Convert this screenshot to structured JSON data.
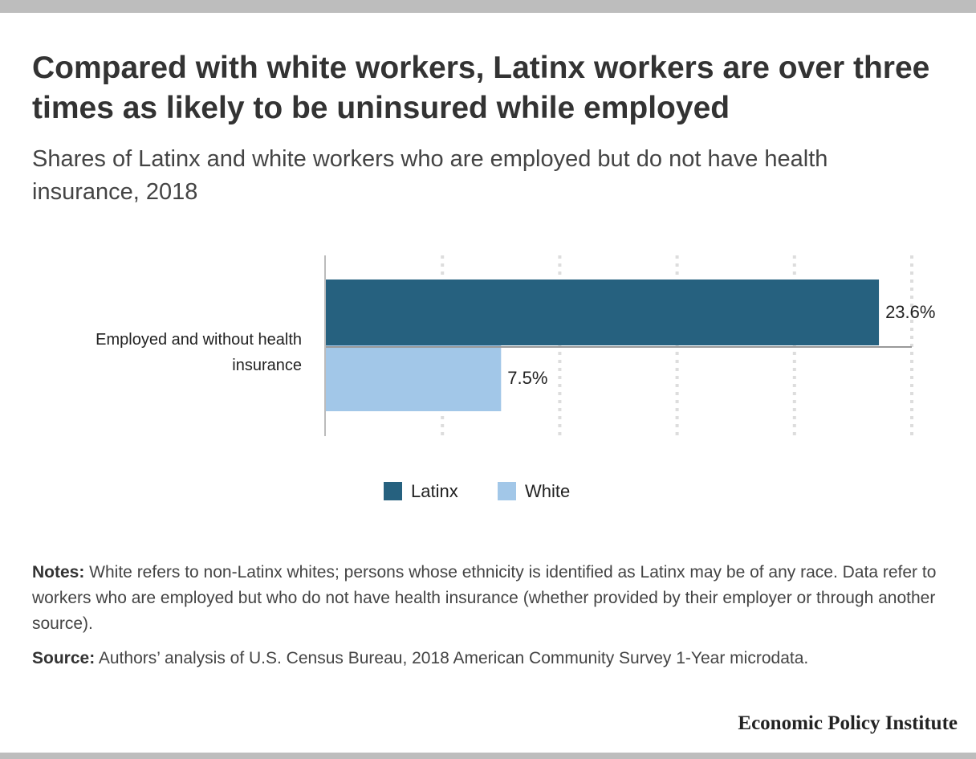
{
  "title": "Compared with white workers, Latinx workers are over three times as likely to be uninsured while employed",
  "subtitle": "Shares of Latinx and white workers who are employed but do not have health insurance, 2018",
  "notes": {
    "label": "Notes:",
    "text": " White refers to non-Latinx whites; persons whose ethnicity is identified as Latinx may be of any race. Data refer to workers who are employed but who do not have health insurance (whether provided by their employer or through another source)."
  },
  "source": {
    "label": "Source:",
    "text": " Authors’ analysis of U.S. Census Bureau, 2018 American Community Survey 1-Year microdata."
  },
  "branding": {
    "name": "Economic Policy Institute"
  },
  "chart_data": {
    "type": "bar",
    "orientation": "horizontal",
    "categories": [
      "Employed and without health insurance"
    ],
    "series": [
      {
        "name": "Latinx",
        "values": [
          23.6
        ],
        "labels": [
          "23.6%"
        ],
        "color": "#26617f"
      },
      {
        "name": "White",
        "values": [
          7.5
        ],
        "labels": [
          "7.5%"
        ],
        "color": "#a2c7e8"
      }
    ],
    "xlim": [
      0,
      25
    ],
    "x_grid_step": 5,
    "grid": true,
    "grid_style": "dotted",
    "tick_labels_shown": false,
    "legend_position": "bottom-center"
  }
}
